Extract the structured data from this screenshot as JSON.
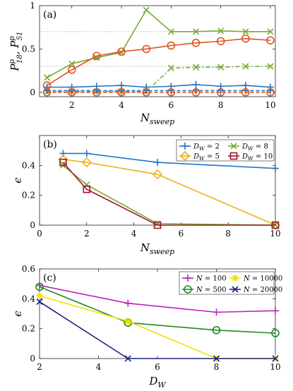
{
  "chart_data": [
    {
      "type": "line",
      "panel_label": "(a)",
      "xlabel_main": "N",
      "xlabel_sub": "sweep",
      "ylabel_text": "P^p_18, P^p_51",
      "ylabel_parts": [
        "P",
        "p",
        "18",
        ", P",
        "p",
        "51"
      ],
      "xlim": [
        0.7,
        10.2
      ],
      "ylim": [
        -0.05,
        1.0
      ],
      "xticks": [
        2,
        4,
        6,
        8,
        10
      ],
      "yticks": [
        0,
        0.5,
        1
      ],
      "ytick_labels": [
        "0",
        "0.5",
        "1"
      ],
      "reference_lines": [
        0.7,
        0.3
      ],
      "series": [
        {
          "x": [
            1,
            2,
            3,
            4,
            5,
            6,
            7,
            8,
            9,
            10
          ],
          "y": [
            0.06,
            0.06,
            0.07,
            0.08,
            0.06,
            0.07,
            0.09,
            0.07,
            0.08,
            0.06
          ],
          "color": "#1f77c8",
          "marker": "plus",
          "dash": "solid"
        },
        {
          "x": [
            1,
            2,
            3,
            4,
            5,
            6,
            7,
            8,
            9,
            10
          ],
          "y": [
            0.17,
            0.33,
            0.4,
            0.46,
            0.95,
            0.7,
            0.7,
            0.71,
            0.7,
            0.7
          ],
          "color": "#77ac30",
          "marker": "x",
          "dash": "solid"
        },
        {
          "x": [
            1,
            2,
            3,
            4,
            5,
            6,
            7,
            8,
            9,
            10
          ],
          "y": [
            0.08,
            0.26,
            0.42,
            0.47,
            0.5,
            0.54,
            0.57,
            0.59,
            0.62,
            0.6
          ],
          "color": "#e0531f",
          "marker": "circle",
          "dash": "solid"
        },
        {
          "x": [
            1,
            2,
            3,
            4,
            5,
            6,
            7,
            8,
            9,
            10
          ],
          "y": [
            0.01,
            0.01,
            0.01,
            0.01,
            0.01,
            0.28,
            0.29,
            0.29,
            0.3,
            0.3
          ],
          "color": "#77ac30",
          "marker": "x",
          "dash": "dashdot"
        },
        {
          "x": [
            1,
            2,
            3,
            4,
            5,
            6,
            7,
            8,
            9,
            10
          ],
          "y": [
            0.02,
            0.02,
            0.02,
            0.02,
            0.02,
            0.02,
            0.02,
            0.02,
            0.02,
            0.02
          ],
          "color": "#1f77c8",
          "marker": "plus",
          "dash": "dashed"
        },
        {
          "x": [
            1,
            2,
            3,
            4,
            5,
            6,
            7,
            8,
            9,
            10
          ],
          "y": [
            0.0,
            0.0,
            0.0,
            0.0,
            0.0,
            0.0,
            0.0,
            0.0,
            0.0,
            0.0
          ],
          "color": "#e0531f",
          "marker": "circle",
          "dash": "dashed"
        }
      ]
    },
    {
      "type": "line",
      "panel_label": "(b)",
      "xlabel_main": "N",
      "xlabel_sub": "sweep",
      "ylabel": "ϵ",
      "xlim": [
        0,
        10
      ],
      "ylim": [
        0,
        0.6
      ],
      "xticks": [
        0,
        2,
        4,
        6,
        8,
        10
      ],
      "yticks": [
        0,
        0.2,
        0.4
      ],
      "ytick_labels": [
        "0",
        "0.2",
        "0.4"
      ],
      "legend": "top-right",
      "series": [
        {
          "name_main": "D",
          "name_sub": "W",
          "name_tail": " = 2",
          "x": [
            1,
            2,
            5,
            10
          ],
          "y": [
            0.48,
            0.48,
            0.42,
            0.38
          ],
          "color": "#1f77c8",
          "marker": "plus"
        },
        {
          "name_main": "D",
          "name_sub": "W",
          "name_tail": " = 5",
          "x": [
            1,
            2,
            5,
            10
          ],
          "y": [
            0.44,
            0.42,
            0.34,
            0.0
          ],
          "color": "#edb120",
          "marker": "diamond"
        },
        {
          "name_main": "D",
          "name_sub": "W",
          "name_tail": " = 8",
          "x": [
            1,
            2,
            5,
            10
          ],
          "y": [
            0.4,
            0.27,
            0.01,
            0.0
          ],
          "color": "#77ac30",
          "marker": "x"
        },
        {
          "name_main": "D",
          "name_sub": "W",
          "name_tail": " = 10",
          "x": [
            1,
            2,
            5,
            10
          ],
          "y": [
            0.42,
            0.24,
            0.0,
            0.0
          ],
          "color": "#a2142f",
          "marker": "square"
        }
      ]
    },
    {
      "type": "line",
      "panel_label": "(c)",
      "xlabel_main": "D",
      "xlabel_sub": "W",
      "ylabel": "ϵ",
      "xlim": [
        2,
        10
      ],
      "ylim": [
        0,
        0.6
      ],
      "xticks": [
        2,
        4,
        6,
        8,
        10
      ],
      "yticks": [
        0,
        0.2,
        0.4,
        0.6
      ],
      "ytick_labels": [
        "0",
        "0.2",
        "0.4",
        "0.6"
      ],
      "legend": "top-right",
      "series": [
        {
          "name_main": "N",
          "name_tail": " = 100",
          "x": [
            2,
            5,
            8,
            10
          ],
          "y": [
            0.49,
            0.37,
            0.31,
            0.32
          ],
          "color": "#c020c0",
          "marker": "plus"
        },
        {
          "name_main": "N",
          "name_tail": " = 500",
          "x": [
            2,
            5,
            8,
            10
          ],
          "y": [
            0.48,
            0.24,
            0.19,
            0.17
          ],
          "color": "#208a20",
          "marker": "circle"
        },
        {
          "name_main": "N",
          "name_tail": " = 10000",
          "x": [
            2,
            5,
            8,
            10
          ],
          "y": [
            0.42,
            0.25,
            0.0,
            0.0
          ],
          "color": "#f2e000",
          "marker": "star"
        },
        {
          "name_main": "N",
          "name_tail": " = 20000",
          "x": [
            2,
            5,
            8,
            10
          ],
          "y": [
            0.38,
            0.0,
            0.0,
            0.0
          ],
          "color": "#1a237e",
          "marker": "x"
        }
      ]
    }
  ]
}
